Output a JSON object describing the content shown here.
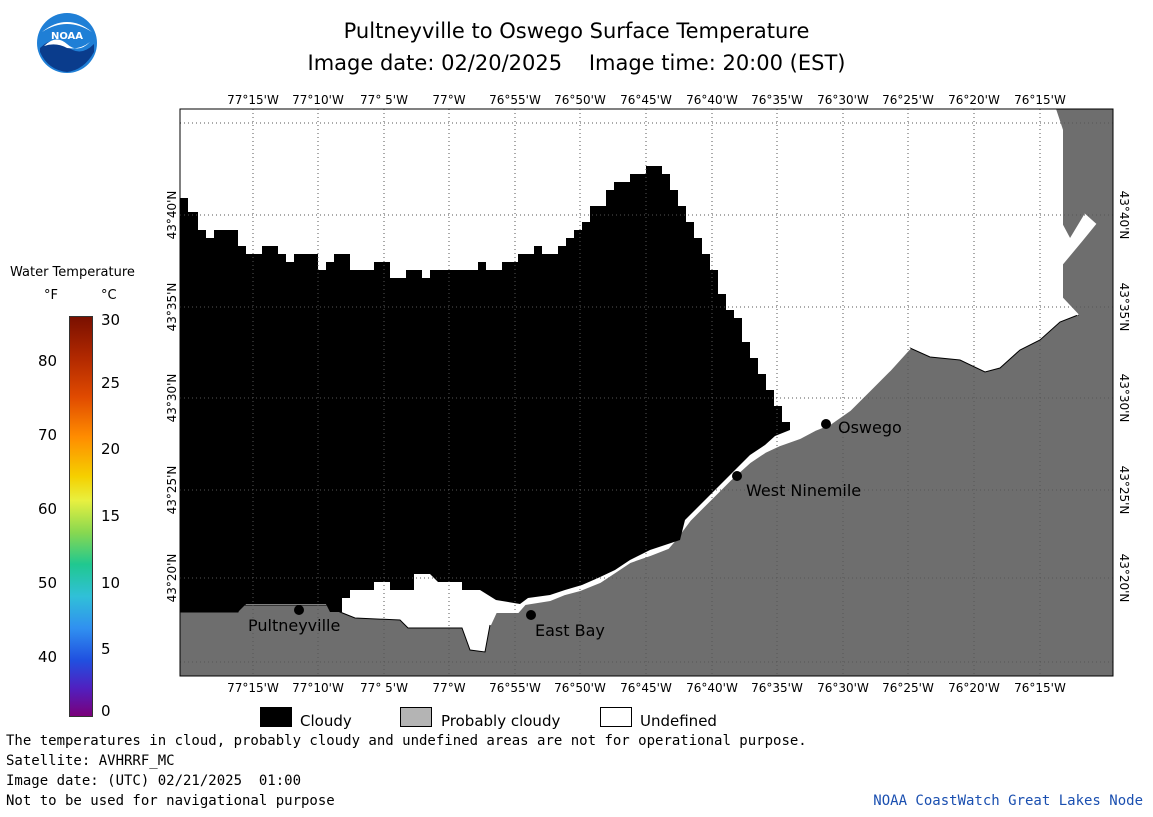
{
  "title": {
    "line1": "Pultneyville to Oswego Surface Temperature",
    "line2": "Image date: 02/20/2025    Image time: 20:00 (EST)"
  },
  "logo": {
    "text": "NOAA",
    "icon": "noaa-logo"
  },
  "map": {
    "lon_labels": [
      "77°15'W",
      "77°10'W",
      "77° 5'W",
      "77°W",
      "76°55'W",
      "76°50'W",
      "76°45'W",
      "76°40'W",
      "76°35'W",
      "76°30'W",
      "76°25'W",
      "76°20'W",
      "76°15'W"
    ],
    "lat_labels": [
      "43°40'N",
      "43°35'N",
      "43°30'N",
      "43°25'N",
      "43°20'N"
    ],
    "places": [
      {
        "name": "Oswego"
      },
      {
        "name": "West Ninemile"
      },
      {
        "name": "Pultneyville"
      },
      {
        "name": "East Bay"
      }
    ],
    "colors": {
      "cloud": "#000000",
      "land": "#6e6e6e",
      "undefined": "#ffffff"
    }
  },
  "scale": {
    "title": "Water Temperature",
    "unit_f": "°F",
    "unit_c": "°C",
    "f_labels": [
      "80",
      "70",
      "60",
      "50",
      "40"
    ],
    "c_labels": [
      "30",
      "25",
      "20",
      "15",
      "10",
      "5",
      "0"
    ]
  },
  "legend": [
    {
      "label": "Cloudy",
      "color": "#000000"
    },
    {
      "label": "Probably cloudy",
      "color": "#b4b4b4"
    },
    {
      "label": "Undefined",
      "color": "#ffffff"
    }
  ],
  "footer": {
    "line1": "The temperatures in cloud, probably cloudy and undefined areas are not for operational purpose.",
    "line2": "Satellite: AVHRRF_MC",
    "line3": "Image date: (UTC) 02/21/2025  01:00",
    "line4": "Not to be used for navigational purpose",
    "credit": "NOAA CoastWatch Great Lakes Node"
  }
}
